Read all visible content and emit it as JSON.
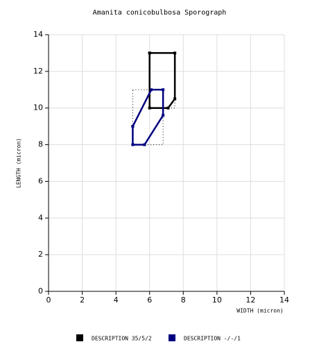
{
  "chart_data": {
    "type": "line",
    "title": "Amanita conicobulbosa Sporograph",
    "x_label": "WIDTH (micron)",
    "y_label": "LENGTH (micron)",
    "xlim": [
      0,
      14
    ],
    "ylim": [
      0,
      14
    ],
    "xticks": [
      0,
      2,
      4,
      6,
      8,
      10,
      12,
      14
    ],
    "yticks": [
      0,
      2,
      4,
      6,
      8,
      10,
      12,
      14
    ],
    "grid": true,
    "series": [
      {
        "name": "DESCRIPTION 35/5/2",
        "color": "#000000",
        "x": [
          6,
          7.5,
          7.5,
          7.1,
          6,
          6
        ],
        "values": [
          13,
          13,
          10.5,
          10,
          10,
          13
        ]
      },
      {
        "name": "DESCRIPTION -/-/1",
        "color": "#000080",
        "x": [
          5,
          5,
          5.7,
          6.8,
          6.8,
          6.1,
          5
        ],
        "values": [
          9,
          8,
          8,
          9.6,
          11,
          11,
          9
        ]
      }
    ]
  }
}
